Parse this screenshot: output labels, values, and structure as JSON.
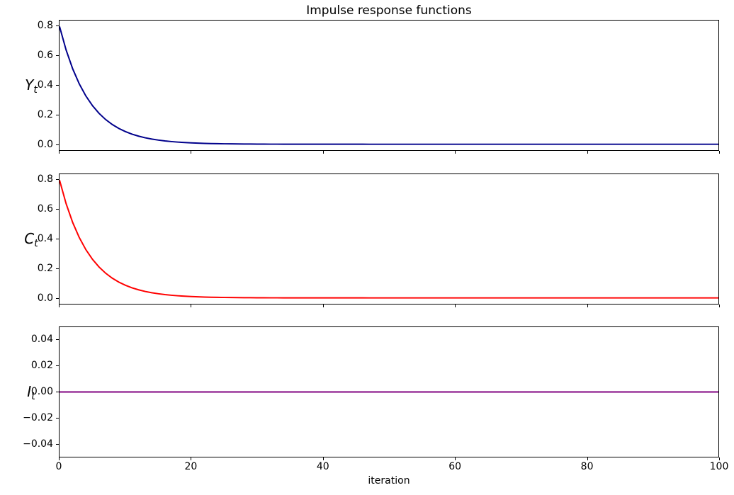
{
  "figure": {
    "title": "Impulse response functions",
    "xlabel": "iteration",
    "background_color": "#ffffff",
    "text_color": "#000000",
    "spine_color": "#000000"
  },
  "chart_data": [
    {
      "type": "line",
      "panel": "top",
      "ylabel": {
        "base": "Y",
        "sub": "t"
      },
      "line_color": "#00008B",
      "xlim": [
        0,
        100
      ],
      "ylim": [
        -0.04,
        0.84
      ],
      "xticks": [
        0,
        20,
        40,
        60,
        80,
        100
      ],
      "xtick_labels": [
        "0",
        "20",
        "40",
        "60",
        "80",
        "100"
      ],
      "show_xtick_labels": false,
      "yticks": [
        0.0,
        0.2,
        0.4,
        0.6,
        0.8
      ],
      "ytick_labels": [
        "0.0",
        "0.2",
        "0.4",
        "0.6",
        "0.8"
      ],
      "x_step": 1,
      "values": [
        0.8,
        0.64,
        0.512,
        0.4096,
        0.32768,
        0.26214,
        0.20972,
        0.16777,
        0.13422,
        0.10737,
        0.0859,
        0.06872,
        0.05498,
        0.04398,
        0.03518,
        0.02815,
        0.02252,
        0.01801,
        0.01441,
        0.01153,
        0.00922,
        0.00738,
        0.0059,
        0.00472,
        0.00378,
        0.00302,
        0.00242,
        0.00193,
        0.00155,
        0.00124,
        0.00099,
        0.00079,
        0.00063,
        0.00051,
        0.00041,
        0.00032,
        0.00026,
        0.00021,
        0.00017,
        0.00013,
        0.00011,
        9e-05,
        7e-05,
        5e-05,
        4e-05,
        3e-05,
        3e-05,
        2e-05,
        2e-05,
        1e-05,
        1e-05,
        0,
        0,
        0,
        0,
        0,
        0,
        0,
        0,
        0,
        0,
        0,
        0,
        0,
        0,
        0,
        0,
        0,
        0,
        0,
        0,
        0,
        0,
        0,
        0,
        0,
        0,
        0,
        0,
        0,
        0,
        0,
        0,
        0,
        0,
        0,
        0,
        0,
        0,
        0,
        0,
        0,
        0,
        0,
        0,
        0,
        0,
        0,
        0,
        0,
        0
      ]
    },
    {
      "type": "line",
      "panel": "middle",
      "ylabel": {
        "base": "C",
        "sub": "t"
      },
      "line_color": "#FF0000",
      "xlim": [
        0,
        100
      ],
      "ylim": [
        -0.04,
        0.84
      ],
      "xticks": [
        0,
        20,
        40,
        60,
        80,
        100
      ],
      "xtick_labels": [
        "0",
        "20",
        "40",
        "60",
        "80",
        "100"
      ],
      "show_xtick_labels": false,
      "yticks": [
        0.0,
        0.2,
        0.4,
        0.6,
        0.8
      ],
      "ytick_labels": [
        "0.0",
        "0.2",
        "0.4",
        "0.6",
        "0.8"
      ],
      "x_step": 1,
      "values": [
        0.8,
        0.64,
        0.512,
        0.4096,
        0.32768,
        0.26214,
        0.20972,
        0.16777,
        0.13422,
        0.10737,
        0.0859,
        0.06872,
        0.05498,
        0.04398,
        0.03518,
        0.02815,
        0.02252,
        0.01801,
        0.01441,
        0.01153,
        0.00922,
        0.00738,
        0.0059,
        0.00472,
        0.00378,
        0.00302,
        0.00242,
        0.00193,
        0.00155,
        0.00124,
        0.00099,
        0.00079,
        0.00063,
        0.00051,
        0.00041,
        0.00032,
        0.00026,
        0.00021,
        0.00017,
        0.00013,
        0.00011,
        9e-05,
        7e-05,
        5e-05,
        4e-05,
        3e-05,
        3e-05,
        2e-05,
        2e-05,
        1e-05,
        1e-05,
        0,
        0,
        0,
        0,
        0,
        0,
        0,
        0,
        0,
        0,
        0,
        0,
        0,
        0,
        0,
        0,
        0,
        0,
        0,
        0,
        0,
        0,
        0,
        0,
        0,
        0,
        0,
        0,
        0,
        0,
        0,
        0,
        0,
        0,
        0,
        0,
        0,
        0,
        0,
        0,
        0,
        0,
        0,
        0,
        0,
        0,
        0,
        0,
        0,
        0
      ]
    },
    {
      "type": "line",
      "panel": "bottom",
      "ylabel": {
        "base": "I",
        "sub": "t"
      },
      "line_color": "#800080",
      "xlim": [
        0,
        100
      ],
      "ylim": [
        -0.05,
        0.05
      ],
      "xticks": [
        0,
        20,
        40,
        60,
        80,
        100
      ],
      "xtick_labels": [
        "0",
        "20",
        "40",
        "60",
        "80",
        "100"
      ],
      "show_xtick_labels": true,
      "yticks": [
        -0.04,
        -0.02,
        0.0,
        0.02,
        0.04
      ],
      "ytick_labels": [
        "−0.04",
        "−0.02",
        "0.00",
        "0.02",
        "0.04"
      ],
      "constant_value": 0
    }
  ]
}
